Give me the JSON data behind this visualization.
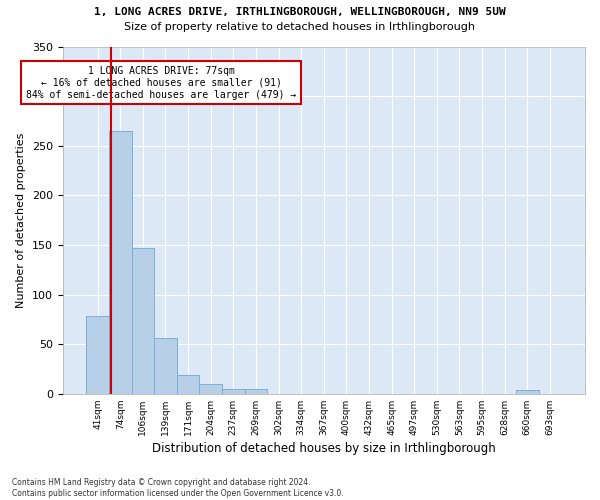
{
  "title1": "1, LONG ACRES DRIVE, IRTHLINGBOROUGH, WELLINGBOROUGH, NN9 5UW",
  "title2": "Size of property relative to detached houses in Irthlingborough",
  "xlabel": "Distribution of detached houses by size in Irthlingborough",
  "ylabel": "Number of detached properties",
  "bin_labels": [
    "41sqm",
    "74sqm",
    "106sqm",
    "139sqm",
    "171sqm",
    "204sqm",
    "237sqm",
    "269sqm",
    "302sqm",
    "334sqm",
    "367sqm",
    "400sqm",
    "432sqm",
    "465sqm",
    "497sqm",
    "530sqm",
    "563sqm",
    "595sqm",
    "628sqm",
    "660sqm",
    "693sqm"
  ],
  "bar_values": [
    78,
    265,
    147,
    56,
    19,
    10,
    5,
    5,
    0,
    0,
    0,
    0,
    0,
    0,
    0,
    0,
    0,
    0,
    0,
    4,
    0
  ],
  "bar_color": "#b8cfe8",
  "bar_edge_color": "#7aafd4",
  "vline_color": "#cc0000",
  "vline_x_index": 0.58,
  "annotation_text": "1 LONG ACRES DRIVE: 77sqm\n← 16% of detached houses are smaller (91)\n84% of semi-detached houses are larger (479) →",
  "annotation_box_color": "#ffffff",
  "annotation_box_edge": "#cc0000",
  "ylim": [
    0,
    350
  ],
  "yticks": [
    0,
    50,
    100,
    150,
    200,
    250,
    300,
    350
  ],
  "bg_color": "#dce8f5",
  "grid_color": "#ffffff",
  "fig_bg_color": "#ffffff",
  "footnote": "Contains HM Land Registry data © Crown copyright and database right 2024.\nContains public sector information licensed under the Open Government Licence v3.0."
}
